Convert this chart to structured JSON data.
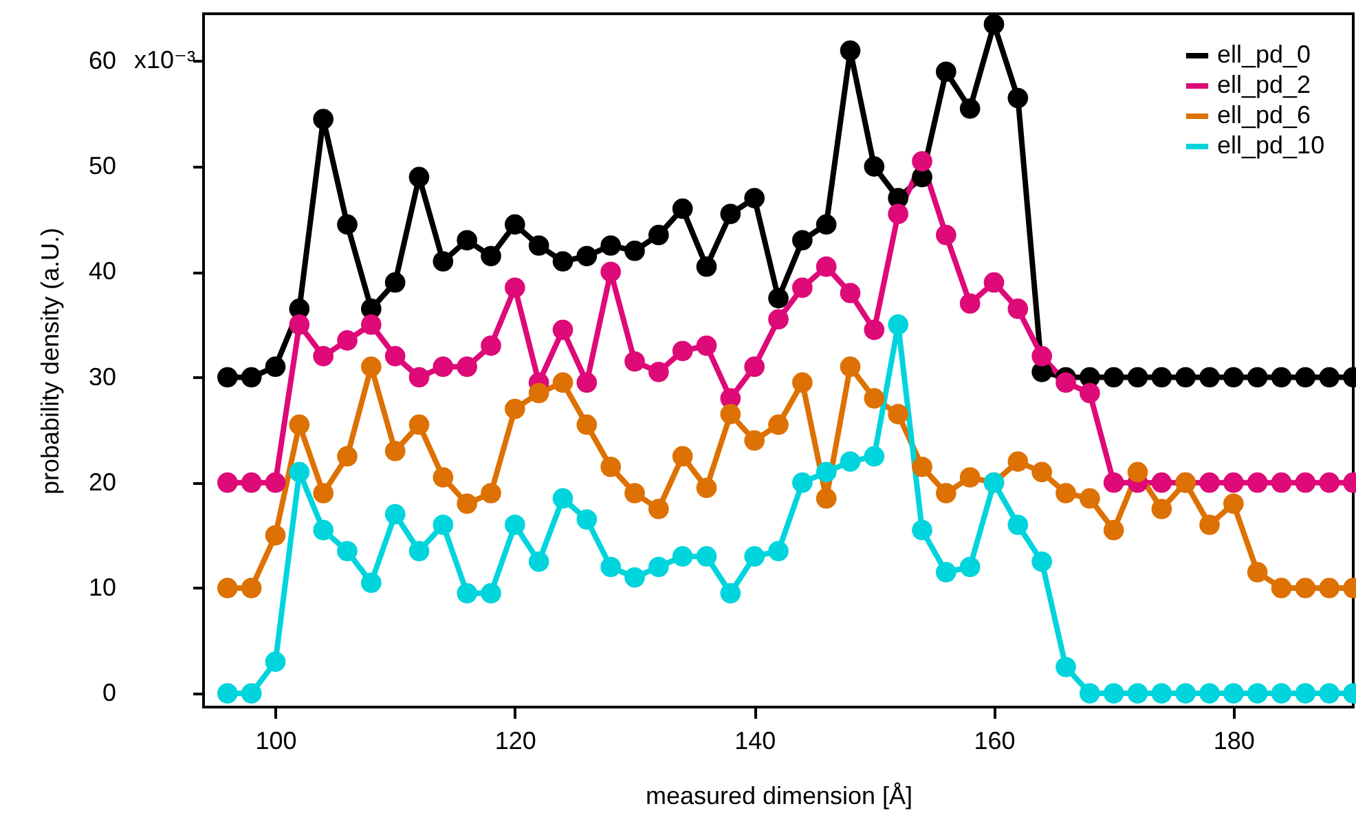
{
  "chart_data": {
    "type": "line",
    "xlabel": "measured dimension [Å]",
    "ylabel": "probability density (a.U.)",
    "annotations": [
      "x10⁻³"
    ],
    "x": [
      96,
      98,
      100,
      102,
      104,
      106,
      108,
      110,
      112,
      114,
      116,
      118,
      120,
      122,
      124,
      126,
      128,
      130,
      132,
      134,
      136,
      138,
      140,
      142,
      144,
      146,
      148,
      150,
      152,
      154,
      156,
      158,
      160,
      162,
      164,
      166,
      168,
      170,
      172,
      174,
      176,
      178,
      180,
      182,
      184,
      186,
      188,
      190
    ],
    "xlim": [
      94,
      190
    ],
    "xticks": [
      100,
      120,
      140,
      160,
      180
    ],
    "ylim": [
      -1.3,
      64.5
    ],
    "yticks": [
      0,
      10,
      20,
      30,
      40,
      50,
      60
    ],
    "grid": false,
    "legend": "top right",
    "marker": "circle",
    "line_style": "solid",
    "series": [
      {
        "name": "ell_pd_0",
        "color": "#000000",
        "values": [
          30,
          30,
          31,
          36.5,
          54.5,
          44.5,
          36.5,
          39,
          49,
          41,
          43,
          41.5,
          44.5,
          42.5,
          41,
          41.5,
          42.5,
          42,
          43.5,
          46,
          40.5,
          45.5,
          47,
          37.5,
          43,
          44.5,
          61,
          50,
          47,
          49,
          59,
          55.5,
          63.5,
          56.5,
          30.5,
          30,
          30,
          30,
          30,
          30,
          30,
          30,
          30,
          30,
          30,
          30,
          30,
          30
        ]
      },
      {
        "name": "ell_pd_2",
        "color": "#dd0a78",
        "values": [
          20,
          20,
          20,
          35,
          32,
          33.5,
          35,
          32,
          30,
          31,
          31,
          33,
          38.5,
          29.5,
          34.5,
          29.5,
          40,
          31.5,
          30.5,
          32.5,
          33,
          28,
          31,
          35.5,
          38.5,
          40.5,
          38,
          34.5,
          45.5,
          50.5,
          43.5,
          37,
          39,
          36.5,
          32,
          29.5,
          28.5,
          20,
          20,
          20,
          20,
          20,
          20,
          20,
          20,
          20,
          20,
          20
        ]
      },
      {
        "name": "ell_pd_6",
        "color": "#dd7103",
        "values": [
          10,
          10,
          15,
          25.5,
          19,
          22.5,
          31,
          23,
          25.5,
          20.5,
          18,
          19,
          27,
          28.5,
          29.5,
          25.5,
          21.5,
          19,
          17.5,
          22.5,
          19.5,
          26.5,
          24,
          25.5,
          29.5,
          18.5,
          31,
          28,
          26.5,
          21.5,
          19,
          20.5,
          20,
          22,
          21,
          19,
          18.5,
          15.5,
          21,
          17.5,
          20,
          16,
          18,
          11.5,
          10,
          10,
          10,
          10
        ]
      },
      {
        "name": "ell_pd_10",
        "color": "#00d4dc",
        "values": [
          0,
          0,
          3,
          21,
          15.5,
          13.5,
          10.5,
          17,
          13.5,
          16,
          9.5,
          9.5,
          16,
          12.5,
          18.5,
          16.5,
          12,
          11,
          12,
          13,
          13,
          9.5,
          13,
          13.5,
          20,
          21,
          22,
          22.5,
          35,
          15.5,
          11.5,
          12,
          20,
          16,
          12.5,
          2.5,
          0,
          0,
          0,
          0,
          0,
          0,
          0,
          0,
          0,
          0,
          0,
          0
        ]
      }
    ]
  }
}
